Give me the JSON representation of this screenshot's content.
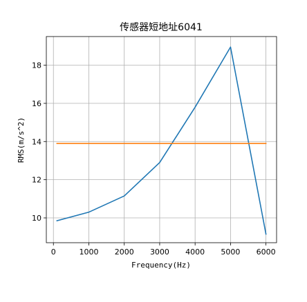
{
  "chart_data": {
    "type": "line",
    "title": "传感器短地址6041",
    "xlabel": "Frequency(Hz)",
    "ylabel": "RMS(m/s^2)",
    "xlim": [
      -200,
      6300
    ],
    "ylim": [
      8.7,
      19.5
    ],
    "xticks": [
      0,
      1000,
      2000,
      3000,
      4000,
      5000,
      6000
    ],
    "yticks": [
      10,
      12,
      14,
      16,
      18
    ],
    "grid": true,
    "series": [
      {
        "color": "#1f77b4",
        "x": [
          100,
          1000,
          2000,
          3000,
          4000,
          5000,
          6000
        ],
        "y": [
          9.85,
          10.3,
          11.15,
          12.9,
          15.8,
          18.95,
          9.15
        ]
      },
      {
        "color": "#ff7f0e",
        "x": [
          100,
          6000
        ],
        "y": [
          13.9,
          13.9
        ]
      }
    ]
  }
}
